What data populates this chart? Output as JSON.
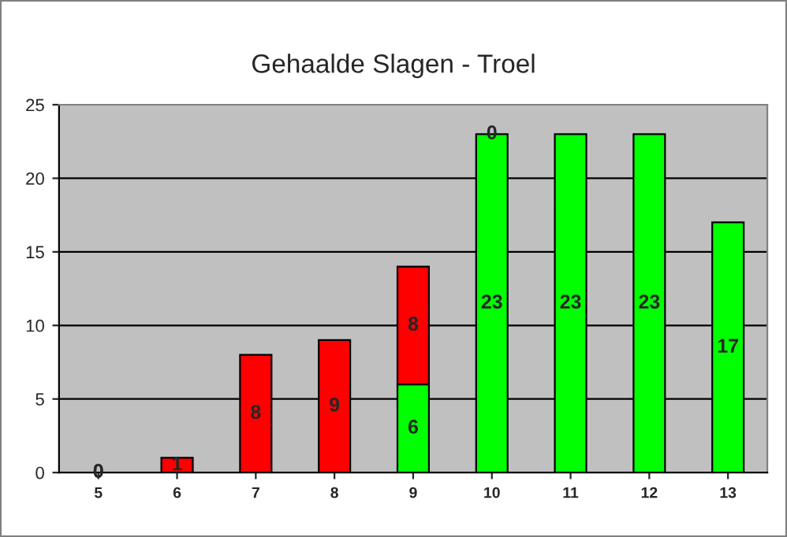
{
  "chart_data": {
    "type": "bar",
    "title": "Gehaalde Slagen - Troel",
    "categories": [
      "5",
      "6",
      "7",
      "8",
      "9",
      "10",
      "11",
      "12",
      "13"
    ],
    "stacked": true,
    "ylim": [
      0,
      25
    ],
    "yticks": [
      0,
      5,
      10,
      15,
      20,
      25
    ],
    "grid": "y",
    "legend": false,
    "series": [
      {
        "color": "#00ff00",
        "values": [
          0,
          0,
          0,
          0,
          6,
          23,
          23,
          23,
          17
        ],
        "value_labels": [
          "0",
          null,
          null,
          null,
          "6",
          "23",
          "23",
          "23",
          "17"
        ]
      },
      {
        "color": "#ff0000",
        "values": [
          0,
          1,
          8,
          9,
          8,
          0,
          0,
          0,
          0
        ],
        "value_labels": [
          "0",
          "1",
          "8",
          "9",
          "8",
          "0",
          null,
          null,
          null
        ]
      }
    ]
  }
}
